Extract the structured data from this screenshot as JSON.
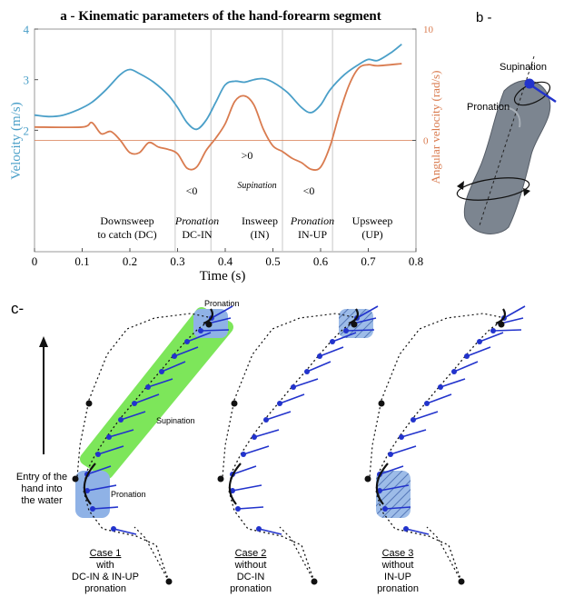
{
  "panel_a": {
    "title": "a - Kinematic parameters of the hand-forearm segment",
    "chart_data": {
      "type": "line",
      "xlabel": "Time (s)",
      "ylabel_left": "Velocity (m/s)",
      "ylabel_right": "Angular velocity (rad/s)",
      "xlim": [
        0,
        0.8
      ],
      "ylim_left": [
        0,
        4
      ],
      "ylim_right": [
        -10,
        10
      ],
      "x_ticks": [
        "0",
        "0.1",
        "0.2",
        "0.3",
        "0.4",
        "0.5",
        "0.6",
        "0.7",
        "0.8"
      ],
      "y_ticks_left": [
        "2",
        "3",
        "4"
      ],
      "y_ticks_right": [
        "0",
        "10"
      ],
      "colors": {
        "velocity": "#4a9fc8",
        "angular": "#d97b4f"
      },
      "series": [
        {
          "role": "velocity",
          "x": [
            0.0,
            0.03,
            0.06,
            0.09,
            0.12,
            0.15,
            0.18,
            0.2,
            0.22,
            0.25,
            0.28,
            0.3,
            0.32,
            0.34,
            0.36,
            0.38,
            0.4,
            0.42,
            0.44,
            0.46,
            0.48,
            0.5,
            0.53,
            0.56,
            0.58,
            0.6,
            0.62,
            0.65,
            0.68,
            0.7,
            0.72,
            0.75,
            0.77
          ],
          "y": [
            2.3,
            2.27,
            2.3,
            2.4,
            2.55,
            2.8,
            3.1,
            3.2,
            3.12,
            2.95,
            2.7,
            2.45,
            2.15,
            2.02,
            2.2,
            2.55,
            2.9,
            2.97,
            2.95,
            3.0,
            3.02,
            2.95,
            2.75,
            2.45,
            2.35,
            2.5,
            2.8,
            3.1,
            3.3,
            3.4,
            3.38,
            3.55,
            3.7
          ]
        },
        {
          "role": "angular",
          "x": [
            0.0,
            0.1,
            0.12,
            0.14,
            0.16,
            0.18,
            0.2,
            0.22,
            0.24,
            0.26,
            0.28,
            0.3,
            0.32,
            0.34,
            0.36,
            0.38,
            0.4,
            0.42,
            0.44,
            0.46,
            0.48,
            0.5,
            0.52,
            0.54,
            0.56,
            0.58,
            0.6,
            0.62,
            0.64,
            0.66,
            0.68,
            0.7,
            0.72,
            0.77
          ],
          "y": [
            1.2,
            1.2,
            1.6,
            0.6,
            0.8,
            0.0,
            -1.1,
            -1.1,
            -0.2,
            -0.6,
            -0.8,
            -1.2,
            -2.5,
            -2.4,
            -0.9,
            0.2,
            1.5,
            3.5,
            4.0,
            3.2,
            1.0,
            -0.5,
            -1.0,
            -1.6,
            -2.0,
            -2.6,
            -2.4,
            -0.5,
            2.5,
            5.0,
            6.5,
            6.8,
            6.7,
            6.9
          ]
        }
      ],
      "phase_boundaries": [
        0.295,
        0.37,
        0.52,
        0.625
      ],
      "annotations": {
        "phase_dc_line1": "Downsweep",
        "phase_dc_line2": "to catch (DC)",
        "phase_dcin_line1": "Pronation",
        "phase_dcin_line2": "DC-IN",
        "phase_in_line1": "Insweep",
        "phase_in_line2": "(IN)",
        "phase_inup_line1": "Pronation",
        "phase_inup_line2": "IN-UP",
        "phase_up_line1": "Upsweep",
        "phase_up_line2": "(UP)",
        "lt0_a": "<0",
        "gt0": ">0",
        "lt0_b": "<0",
        "supination": "Supination"
      }
    }
  },
  "panel_b": {
    "label": "b -",
    "supination": "Supination",
    "pronation": "Pronation"
  },
  "panel_c": {
    "label": "c-",
    "entry_line1": "Entry of the",
    "entry_line2": "hand into",
    "entry_line3": "the water",
    "pronation_top": "Pronation",
    "supination": "Supination",
    "pronation_bottom": "Pronation",
    "cases": [
      {
        "title": "Case 1",
        "line1": "with",
        "line2": "DC-IN & IN-UP",
        "line3": "pronation"
      },
      {
        "title": "Case 2",
        "line1": "without",
        "line2": "DC-IN",
        "line3": "pronation"
      },
      {
        "title": "Case 3",
        "line1": "without",
        "line2": "IN-UP",
        "line3": "pronation"
      }
    ],
    "colors": {
      "vector": "#2233cc",
      "green": "#7de65a",
      "blue_zone": "#8fb2e6"
    }
  }
}
